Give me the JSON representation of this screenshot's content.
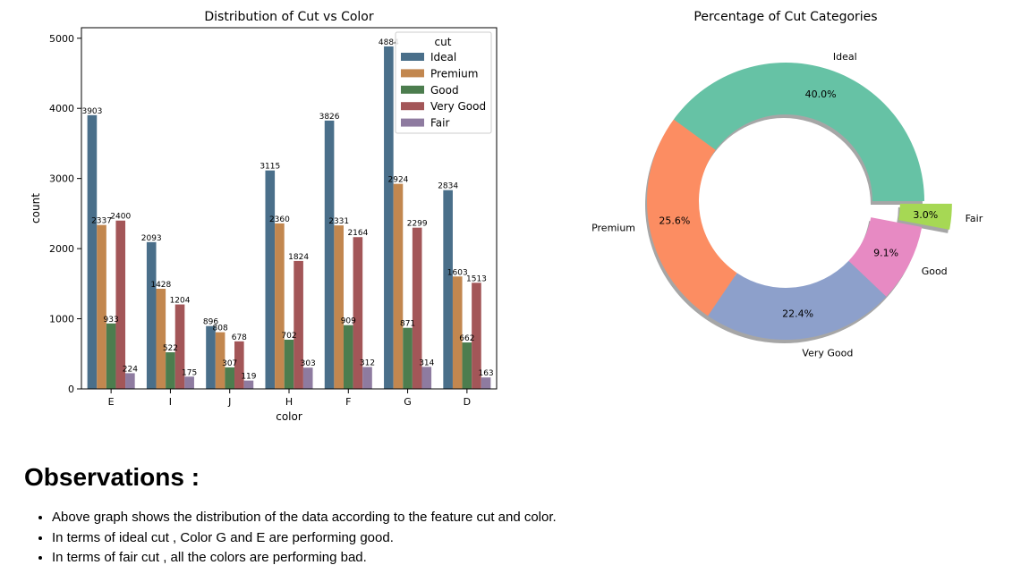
{
  "chart_data": [
    {
      "type": "bar",
      "title": "Distribution of Cut vs Color",
      "xlabel": "color",
      "ylabel": "count",
      "ylim": [
        0,
        5150
      ],
      "yticks": [
        0,
        1000,
        2000,
        3000,
        4000,
        5000
      ],
      "categories": [
        "E",
        "I",
        "J",
        "H",
        "F",
        "G",
        "D"
      ],
      "legend": {
        "title": "cut",
        "placement": "top-right"
      },
      "series": [
        {
          "name": "Ideal",
          "color": "#4a6f8a",
          "values": [
            3903,
            2093,
            896,
            3115,
            3826,
            4884,
            2834
          ],
          "labels": [
            "3903",
            "2093",
            "896",
            "3115",
            "3826",
            "4884",
            "2834"
          ]
        },
        {
          "name": "Premium",
          "color": "#c2874f",
          "values": [
            2337,
            1428,
            808,
            2360,
            2331,
            2924,
            1603
          ],
          "labels": [
            "2337",
            "1428",
            "808",
            "2360",
            "2331",
            "2924",
            "1603"
          ]
        },
        {
          "name": "Good",
          "color": "#4c7d4e",
          "values": [
            933,
            522,
            307,
            702,
            909,
            871,
            662
          ],
          "labels": [
            "933",
            "522",
            "307",
            "702",
            "909",
            "871",
            "662"
          ]
        },
        {
          "name": "Very Good",
          "color": "#a35658",
          "values": [
            2400,
            1204,
            678,
            1824,
            2164,
            2299,
            1513
          ],
          "labels": [
            "2400",
            "1204",
            "678",
            "1824",
            "2164",
            "2299",
            "1513"
          ]
        },
        {
          "name": "Fair",
          "color": "#8e7ba0",
          "values": [
            224,
            175,
            119,
            303,
            312,
            314,
            163
          ],
          "labels": [
            "224",
            "175",
            "119",
            "303",
            "312",
            "314",
            "163"
          ]
        }
      ]
    },
    {
      "type": "pie",
      "title": "Percentage of Cut Categories",
      "donut": true,
      "shadow": true,
      "slices": [
        {
          "label": "Ideal",
          "value": 40.0,
          "pct": "40.0%",
          "color": "#66c2a5",
          "explode": false
        },
        {
          "label": "Premium",
          "value": 25.6,
          "pct": "25.6%",
          "color": "#fc8d62",
          "explode": false
        },
        {
          "label": "Very Good",
          "value": 22.4,
          "pct": "22.4%",
          "color": "#8da0cb",
          "explode": false
        },
        {
          "label": "Good",
          "value": 9.1,
          "pct": "9.1%",
          "color": "#e78ac3",
          "explode": false
        },
        {
          "label": "Fair",
          "value": 3.0,
          "pct": "3.0%",
          "color": "#a6d854",
          "explode": true
        }
      ]
    }
  ],
  "observations": {
    "title": "Observations :",
    "items": [
      "Above graph shows the distribution of the data according to the feature cut and color.",
      "In terms of ideal cut , Color G and E are performing good.",
      "In terms of fair cut , all the colors are performing bad."
    ]
  }
}
